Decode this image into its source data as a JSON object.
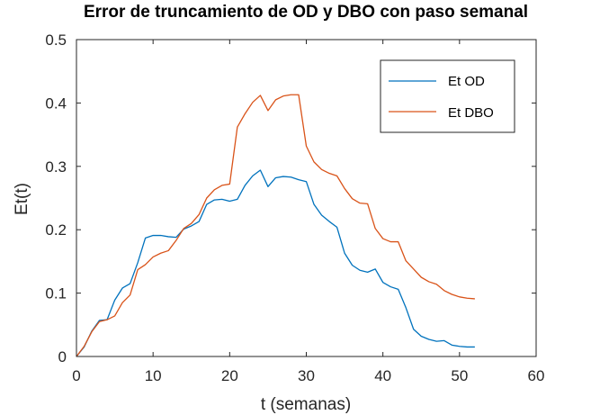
{
  "chart_data": {
    "type": "line",
    "title": "Error de truncamiento de OD y DBO con paso semanal",
    "xlabel": "t (semanas)",
    "ylabel": "Et(t)",
    "xlim": [
      0,
      60
    ],
    "ylim": [
      0,
      0.5
    ],
    "xticks": [
      0,
      10,
      20,
      30,
      40,
      50,
      60
    ],
    "yticks": [
      0,
      0.1,
      0.2,
      0.3,
      0.4,
      0.5
    ],
    "xtick_labels": [
      "0",
      "10",
      "20",
      "30",
      "40",
      "50",
      "60"
    ],
    "ytick_labels": [
      "0",
      "0.1",
      "0.2",
      "0.3",
      "0.4",
      "0.5"
    ],
    "grid": false,
    "legend_position": "top-right",
    "x": [
      0,
      1,
      2,
      3,
      4,
      5,
      6,
      7,
      8,
      9,
      10,
      11,
      12,
      13,
      14,
      15,
      16,
      17,
      18,
      19,
      20,
      21,
      22,
      23,
      24,
      25,
      26,
      27,
      28,
      29,
      30,
      31,
      32,
      33,
      34,
      35,
      36,
      37,
      38,
      39,
      40,
      41,
      42,
      43,
      44,
      45,
      46,
      47,
      48,
      49,
      50,
      51,
      52
    ],
    "series": [
      {
        "name": "Et OD",
        "color": "#0072BD",
        "values": [
          0.0,
          0.015,
          0.04,
          0.057,
          0.058,
          0.089,
          0.108,
          0.115,
          0.148,
          0.187,
          0.191,
          0.191,
          0.189,
          0.188,
          0.201,
          0.206,
          0.213,
          0.24,
          0.247,
          0.248,
          0.245,
          0.248,
          0.27,
          0.285,
          0.294,
          0.268,
          0.282,
          0.284,
          0.283,
          0.279,
          0.276,
          0.24,
          0.223,
          0.213,
          0.204,
          0.163,
          0.144,
          0.136,
          0.133,
          0.138,
          0.117,
          0.11,
          0.106,
          0.077,
          0.043,
          0.032,
          0.027,
          0.024,
          0.025,
          0.018,
          0.016,
          0.015,
          0.015
        ]
      },
      {
        "name": "Et DBO",
        "color": "#D95319",
        "values": [
          0.0,
          0.016,
          0.039,
          0.055,
          0.058,
          0.064,
          0.085,
          0.097,
          0.137,
          0.145,
          0.157,
          0.163,
          0.167,
          0.183,
          0.202,
          0.21,
          0.224,
          0.25,
          0.263,
          0.27,
          0.272,
          0.362,
          0.383,
          0.401,
          0.412,
          0.388,
          0.405,
          0.411,
          0.413,
          0.413,
          0.332,
          0.307,
          0.295,
          0.289,
          0.285,
          0.265,
          0.249,
          0.242,
          0.241,
          0.202,
          0.186,
          0.181,
          0.181,
          0.151,
          0.138,
          0.125,
          0.118,
          0.114,
          0.104,
          0.098,
          0.094,
          0.092,
          0.091
        ]
      }
    ]
  }
}
